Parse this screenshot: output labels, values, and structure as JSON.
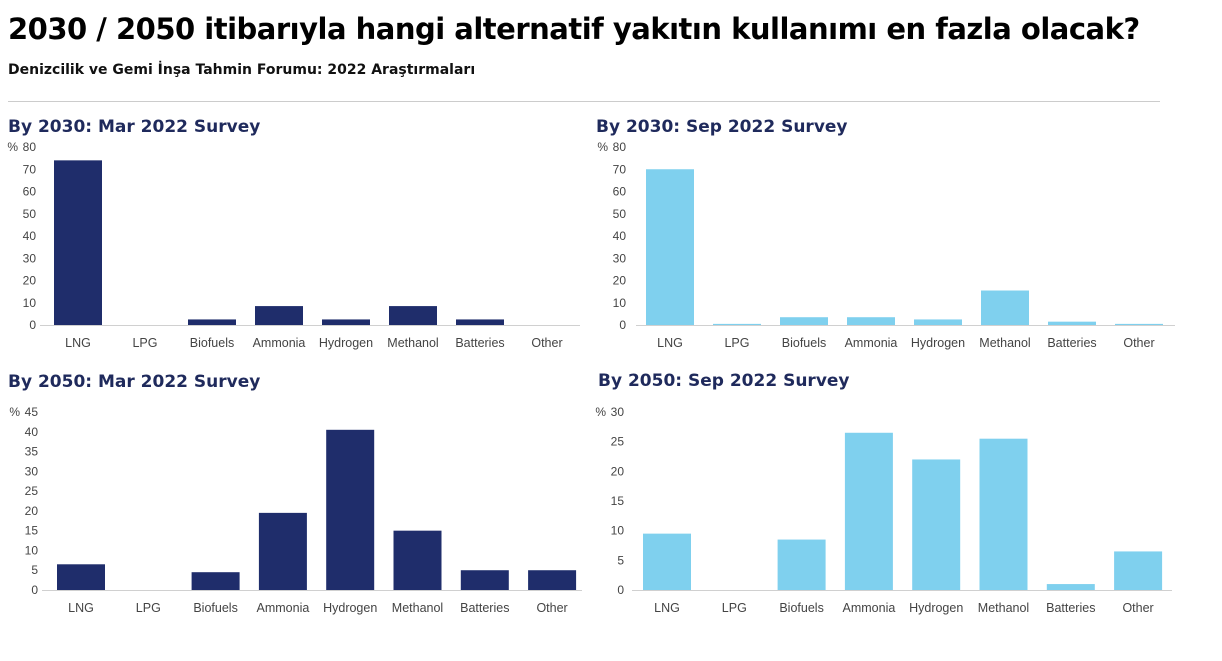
{
  "header": {
    "title": "2030 / 2050 itibarıyla hangi alternatif yakıtın kullanımı en fazla olacak?",
    "subtitle": "Denizcilik ve Gemi İnşa Tahmin Forumu: 2022 Araştırmaları"
  },
  "chart_data": [
    {
      "type": "bar",
      "title": "By 2030: Mar 2022 Survey",
      "ylabel": "%",
      "ylim": [
        0,
        80
      ],
      "yticks": [
        0,
        10,
        20,
        30,
        40,
        50,
        60,
        70,
        80
      ],
      "color": "#1f2d6b",
      "categories": [
        "LNG",
        "LPG",
        "Biofuels",
        "Ammonia",
        "Hydrogen",
        "Methanol",
        "Batteries",
        "Other"
      ],
      "values": [
        74,
        0,
        2.5,
        8.5,
        2.5,
        8.5,
        2.5,
        0
      ]
    },
    {
      "type": "bar",
      "title": "By 2030: Sep 2022 Survey",
      "ylabel": "%",
      "ylim": [
        0,
        80
      ],
      "yticks": [
        0,
        10,
        20,
        30,
        40,
        50,
        60,
        70,
        80
      ],
      "color": "#7fd0ee",
      "categories": [
        "LNG",
        "LPG",
        "Biofuels",
        "Ammonia",
        "Hydrogen",
        "Methanol",
        "Batteries",
        "Other"
      ],
      "values": [
        70,
        0.5,
        3.5,
        3.5,
        2.5,
        15.5,
        1.5,
        0.5
      ]
    },
    {
      "type": "bar",
      "title": "By 2050: Mar 2022 Survey",
      "ylabel": "%",
      "ylim": [
        0,
        45
      ],
      "yticks": [
        0,
        5,
        10,
        15,
        20,
        25,
        30,
        35,
        40,
        45
      ],
      "color": "#1f2d6b",
      "categories": [
        "LNG",
        "LPG",
        "Biofuels",
        "Ammonia",
        "Hydrogen",
        "Methanol",
        "Batteries",
        "Other"
      ],
      "values": [
        6.5,
        0,
        4.5,
        19.5,
        40.5,
        15,
        5,
        5
      ]
    },
    {
      "type": "bar",
      "title": "By 2050: Sep 2022 Survey",
      "ylabel": "%",
      "ylim": [
        0,
        30
      ],
      "yticks": [
        0,
        5,
        10,
        15,
        20,
        25,
        30
      ],
      "color": "#7fd0ee",
      "categories": [
        "LNG",
        "LPG",
        "Biofuels",
        "Ammonia",
        "Hydrogen",
        "Methanol",
        "Batteries",
        "Other"
      ],
      "values": [
        9.5,
        0,
        8.5,
        26.5,
        22,
        25.5,
        1,
        6.5
      ]
    }
  ]
}
